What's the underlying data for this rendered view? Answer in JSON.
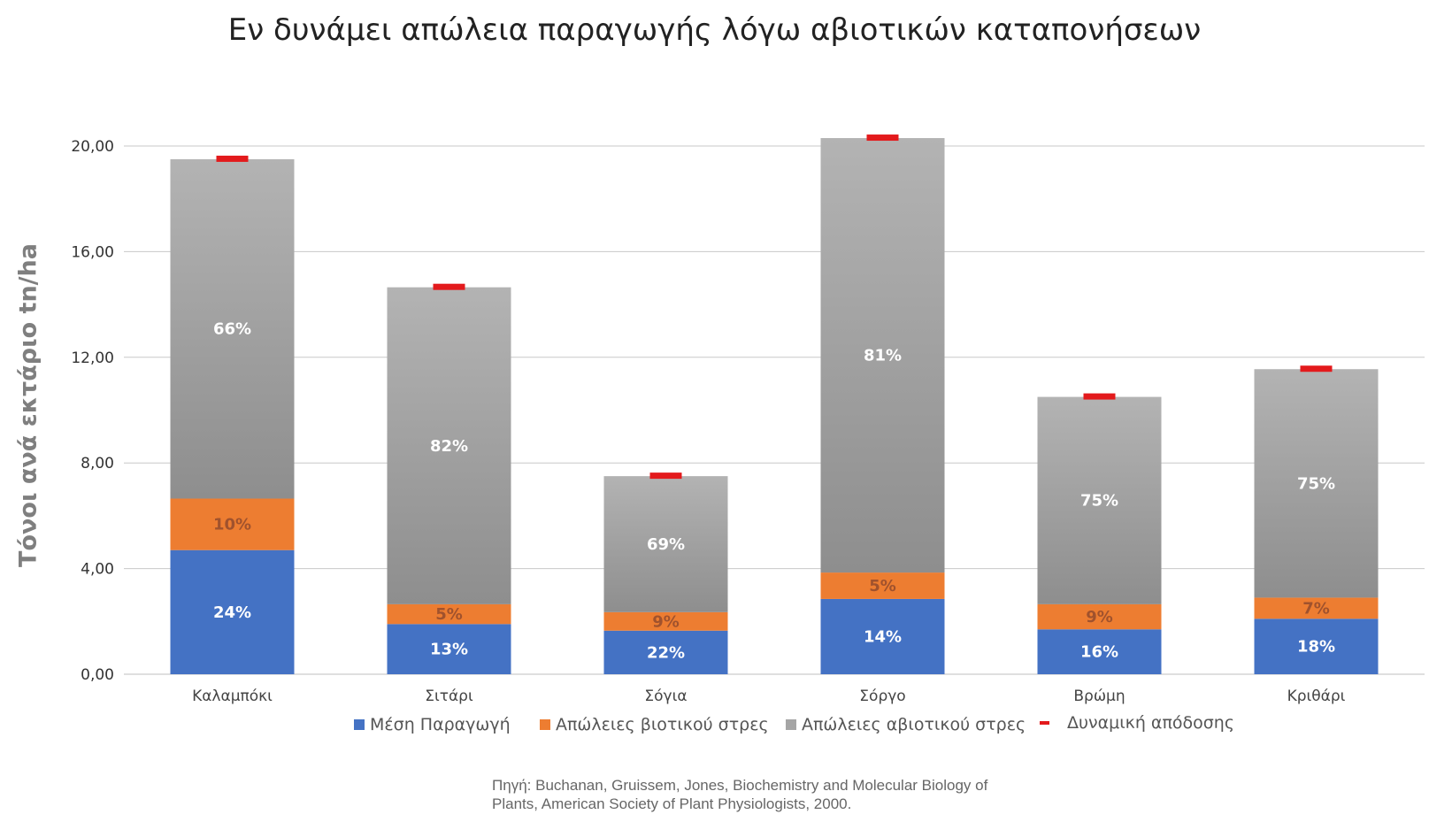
{
  "chart_data": {
    "type": "bar",
    "stacked": true,
    "title": "Εν δυνάμει απώλεια παραγωγής λόγω αβιοτικών καταπονήσεων",
    "ylabel": "Τόνοι ανά εκτάριο tn/ha",
    "xlabel": "",
    "ylim": [
      0,
      20
    ],
    "yticks": [
      "0,00",
      "4,00",
      "8,00",
      "12,00",
      "16,00",
      "20,00"
    ],
    "grid": true,
    "legend_position": "bottom",
    "categories": [
      "Καλαμπόκι",
      "Σιτάρι",
      "Σόγια",
      "Σόργο",
      "Βρώμη",
      "Κριθάρι"
    ],
    "series": [
      {
        "name": "Μέση Παραγωγή",
        "color": "#4472c4",
        "values": [
          4.7,
          1.9,
          1.65,
          2.85,
          1.7,
          2.1
        ],
        "labels": [
          "24%",
          "13%",
          "22%",
          "14%",
          "16%",
          "18%"
        ]
      },
      {
        "name": "Απώλειες βιοτικού στρες",
        "color": "#ed7d31",
        "values": [
          1.95,
          0.75,
          0.7,
          1.0,
          0.95,
          0.8
        ],
        "labels": [
          "10%",
          "5%",
          "9%",
          "5%",
          "9%",
          "7%"
        ]
      },
      {
        "name": "Απώλειες αβιοτικού στρες",
        "color": "#a5a5a5",
        "values": [
          12.85,
          12.0,
          5.15,
          16.45,
          7.85,
          8.65
        ],
        "labels": [
          "66%",
          "82%",
          "69%",
          "81%",
          "75%",
          "75%"
        ]
      }
    ],
    "marker_series": {
      "name": "Δυναμική απόδοσης",
      "color": "#e31a1c",
      "values": [
        19.5,
        14.65,
        7.5,
        20.3,
        10.5,
        11.55
      ]
    }
  },
  "source": {
    "line1": "Πηγή: Buchanan, Gruissem, Jones, Biochemistry and Molecular Biology of",
    "line2": "Plants, American Society of Plant Physiologists, 2000."
  }
}
